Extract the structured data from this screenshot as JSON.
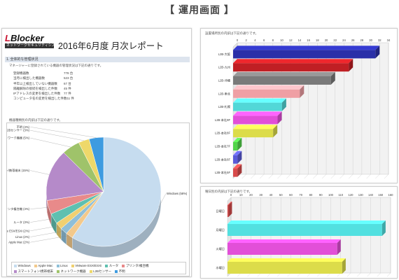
{
  "page_heading": "【 運用画面 】",
  "header": {
    "logo_main_prefix": "L",
    "logo_main_rest": "Blocker",
    "logo_sub": "ネットワークセキュリティシステム",
    "report_title": "2016年6月度  月次レポート"
  },
  "section": {
    "title": "1. 全体的な管理状況",
    "note": "マネージャーに登録されている機器の管理状況は下記の通りです。"
  },
  "summary": [
    {
      "label": "登録機器数",
      "value": "778 台"
    },
    {
      "label": "当月に検出した機器数",
      "value": "523 台"
    },
    {
      "label": "半年以上検出していない機器数",
      "value": "67 台"
    },
    {
      "label": "隔離解除の接続を検出した件数",
      "value": "45 件"
    },
    {
      "label": "IPアドレスの変更を検出した件数",
      "value": "77 件"
    },
    {
      "label": "コンピュータ名の変更を検出した件数",
      "value": "11 件"
    }
  ],
  "pie_caption": "機器種類別の内訳は下記の通りです。",
  "right_top_caption": "設置場所別の内訳は下記の通りです。",
  "right_bottom_caption": "曜日別の内訳は下記の通りです。",
  "chart_data": [
    {
      "type": "pie",
      "slices": [
        {
          "label": "Windows (58%)",
          "name": "Windows",
          "value": 58,
          "color": "#c6dcef"
        },
        {
          "label": "Apple Mac (2%)",
          "name": "Apple Mac",
          "value": 2,
          "color": "#f3c98b"
        },
        {
          "label": "Linux (2%)",
          "name": "Linux",
          "value": 2,
          "color": "#8fbfd8"
        },
        {
          "label": "VMware ESX/ESXi (2%)",
          "name": "VMware ESX/ESXi",
          "value": 2,
          "color": "#f0d070"
        },
        {
          "label": "ルータ (3%)",
          "name": "ルータ",
          "value": 3,
          "color": "#5fc0b0"
        },
        {
          "label": "プリンタ複合機 (4%)",
          "name": "プリンタ/複合機",
          "value": 4,
          "color": "#e88a8a"
        },
        {
          "label": "スマートフォン/携帯端末 (15%)",
          "name": "スマートフォン/携帯端末",
          "value": 15,
          "color": "#b58ac9"
        },
        {
          "label": "ネットワーク機器 (5%)",
          "name": "ネットワーク機器",
          "value": 5,
          "color": "#9fc36a"
        },
        {
          "label": "L2Bセンサー (3%)",
          "name": "L2Bセンサー",
          "value": 3,
          "color": "#eed86a"
        },
        {
          "label": "不明 (4%)",
          "name": "不明",
          "value": 4,
          "color": "#3e9be0"
        }
      ]
    },
    {
      "type": "bar",
      "orientation": "horizontal",
      "categories": [
        "L2B-大阪",
        "L2B-九州",
        "L2B-沖縄",
        "L2B-東北",
        "L2B-札幌",
        "L2B-本社9F",
        "L2B-本社8F",
        "L2B-本社7F",
        "L2B-本社6F",
        "L2B-本社5F"
      ],
      "values": [
        32,
        26,
        22,
        15,
        11,
        10,
        9,
        1,
        1,
        1
      ],
      "colors": [
        "#2a2fa8",
        "#c01f24",
        "#7a7a7a",
        "#ef9fa4",
        "#52d7d7",
        "#e24fd8",
        "#dcdc4a",
        "#52d44a",
        "#5a5ad8",
        "#d84a4a"
      ],
      "xticks": [
        0,
        2,
        4,
        6,
        8,
        10,
        12,
        14,
        16,
        18,
        20,
        22,
        24,
        26,
        28,
        30,
        32,
        34
      ],
      "xlim": [
        0,
        34
      ]
    },
    {
      "type": "bar",
      "orientation": "horizontal",
      "categories": [
        "日曜日",
        "月曜日",
        "火曜日",
        "水曜日"
      ],
      "values": [
        1,
        155,
        110,
        115
      ],
      "colors": [
        "#d84a4a",
        "#52e0e0",
        "#e24fd8",
        "#dcdc4a"
      ],
      "xticks": [
        0,
        10,
        20,
        30,
        40,
        50,
        60,
        70,
        80,
        90,
        100,
        110,
        120,
        130,
        140,
        150,
        160
      ],
      "xlim": [
        0,
        160
      ]
    }
  ]
}
